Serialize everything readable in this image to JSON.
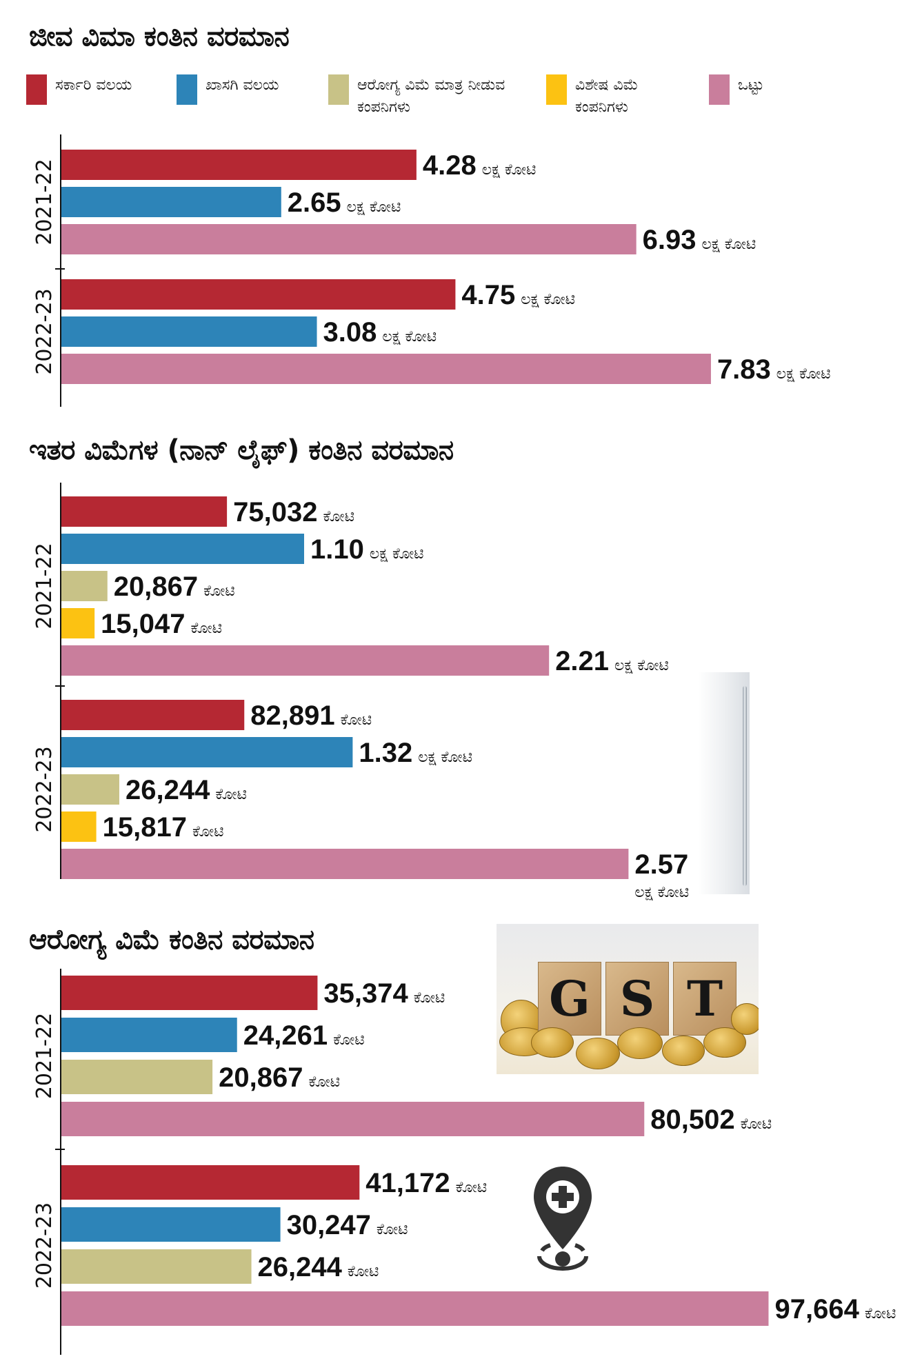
{
  "legend": [
    {
      "key": "govt",
      "label": "ಸರ್ಕಾರಿ ವಲಯ",
      "color": "#b52833"
    },
    {
      "key": "private",
      "label": "ಖಾಸಗಿ ವಲಯ",
      "color": "#2d84b8"
    },
    {
      "key": "health_only",
      "label": "ಆರೋಗ್ಯ ವಿಮೆ ಮಾತ್ರ ನೀಡುವ ಕಂಪನಿಗಳು",
      "color": "#c8c287"
    },
    {
      "key": "specialized",
      "label": "ವಿಶೇಷ ವಿಮೆ ಕಂಪನಿಗಳು",
      "color": "#fcc212"
    },
    {
      "key": "total",
      "label": "ಒಟ್ಟು",
      "color": "#c97e9c"
    }
  ],
  "units": {
    "lakh_crore": "ಲಕ್ಷ ಕೋಟಿ",
    "crore": "ಕೋಟಿ"
  },
  "chart_data": [
    {
      "type": "bar",
      "orientation": "horizontal",
      "title": "ಜೀವ ವಿಮಾ ಕಂತಿನ ವರಮಾನ",
      "value_unit": "lakh crore (₹)",
      "xlim": [
        0,
        8.2
      ],
      "groups": [
        {
          "year": "2021-22",
          "bars": [
            {
              "series": "govt",
              "value": 4.28,
              "label": "4.28",
              "unit": "lakh_crore"
            },
            {
              "series": "private",
              "value": 2.65,
              "label": "2.65",
              "unit": "lakh_crore"
            },
            {
              "series": "total",
              "value": 6.93,
              "label": "6.93",
              "unit": "lakh_crore"
            }
          ]
        },
        {
          "year": "2022-23",
          "bars": [
            {
              "series": "govt",
              "value": 4.75,
              "label": "4.75",
              "unit": "lakh_crore"
            },
            {
              "series": "private",
              "value": 3.08,
              "label": "3.08",
              "unit": "lakh_crore"
            },
            {
              "series": "total",
              "value": 7.83,
              "label": "7.83",
              "unit": "lakh_crore"
            }
          ]
        }
      ]
    },
    {
      "type": "bar",
      "orientation": "horizontal",
      "title": "ಇತರ ವಿಮೆಗಳ (ನಾನ್ ಲೈಫ್) ಕಂತಿನ ವರಮಾನ",
      "value_unit": "crore (₹)",
      "xlim": [
        0,
        270000
      ],
      "groups": [
        {
          "year": "2021-22",
          "bars": [
            {
              "series": "govt",
              "value": 75032,
              "label": "75,032",
              "unit": "crore"
            },
            {
              "series": "private",
              "value": 110000,
              "label": "1.10",
              "unit": "lakh_crore"
            },
            {
              "series": "health_only",
              "value": 20867,
              "label": "20,867",
              "unit": "crore"
            },
            {
              "series": "specialized",
              "value": 15047,
              "label": "15,047",
              "unit": "crore"
            },
            {
              "series": "total",
              "value": 221000,
              "label": "2.21",
              "unit": "lakh_crore"
            }
          ]
        },
        {
          "year": "2022-23",
          "bars": [
            {
              "series": "govt",
              "value": 82891,
              "label": "82,891",
              "unit": "crore"
            },
            {
              "series": "private",
              "value": 132000,
              "label": "1.32",
              "unit": "lakh_crore"
            },
            {
              "series": "health_only",
              "value": 26244,
              "label": "26,244",
              "unit": "crore"
            },
            {
              "series": "specialized",
              "value": 15817,
              "label": "15,817",
              "unit": "crore"
            },
            {
              "series": "total",
              "value": 257000,
              "label": "2.57",
              "unit": "lakh_crore",
              "wrap_unit": true
            }
          ]
        }
      ]
    },
    {
      "type": "bar",
      "orientation": "horizontal",
      "title": "ಆರೋಗ್ಯ ವಿಮೆ ಕಂತಿನ ವರಮಾನ",
      "value_unit": "crore (₹)",
      "xlim": [
        0,
        102000
      ],
      "groups": [
        {
          "year": "2021-22",
          "bars": [
            {
              "series": "govt",
              "value": 35374,
              "label": "35,374",
              "unit": "crore"
            },
            {
              "series": "private",
              "value": 24261,
              "label": "24,261",
              "unit": "crore"
            },
            {
              "series": "health_only",
              "value": 20867,
              "label": "20,867",
              "unit": "crore"
            },
            {
              "series": "total",
              "value": 80502,
              "label": "80,502",
              "unit": "crore"
            }
          ]
        },
        {
          "year": "2022-23",
          "bars": [
            {
              "series": "govt",
              "value": 41172,
              "label": "41,172",
              "unit": "crore"
            },
            {
              "series": "private",
              "value": 30247,
              "label": "30,247",
              "unit": "crore"
            },
            {
              "series": "health_only",
              "value": 26244,
              "label": "26,244",
              "unit": "crore"
            },
            {
              "series": "total",
              "value": 97664,
              "label": "97,664",
              "unit": "crore"
            }
          ]
        }
      ]
    }
  ],
  "images": {
    "gst_photo_text": "GST",
    "pin_icon": "health-location-pin"
  }
}
